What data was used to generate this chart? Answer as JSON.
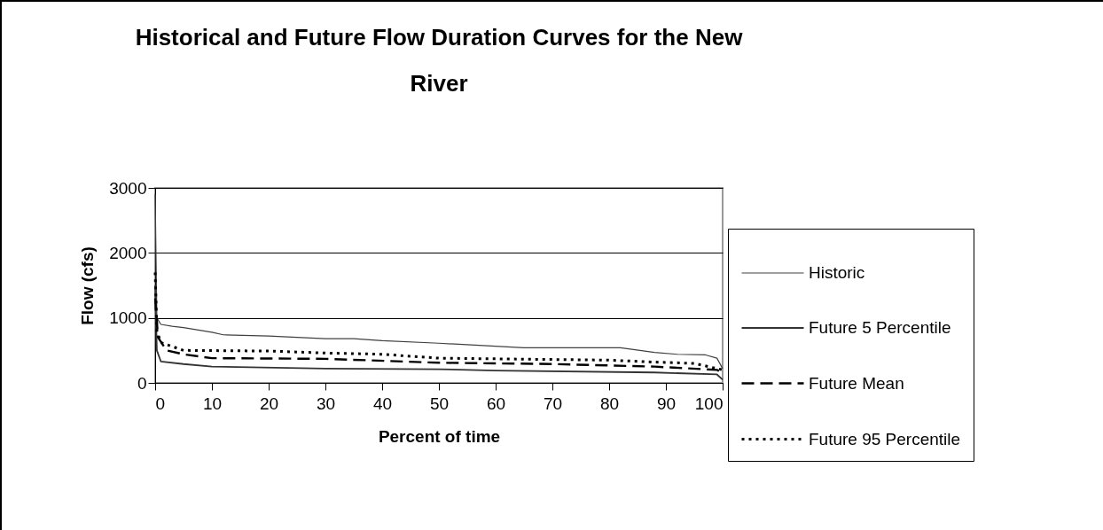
{
  "chart_data": {
    "type": "line",
    "title": "Historical and Future Flow Duration Curves for the New River",
    "xlabel": "Percent of time",
    "ylabel": "Flow (cfs)",
    "xlim": [
      0,
      100
    ],
    "xticks": [
      0,
      10,
      20,
      30,
      40,
      50,
      60,
      70,
      80,
      90,
      100
    ],
    "ylim": [
      0,
      3000
    ],
    "yticks": [
      0,
      1000,
      2000,
      3000
    ],
    "grid": "y",
    "legend": "right",
    "marker": "none",
    "series": [
      {
        "name": "Historic",
        "color": "#404040",
        "line_style": "solid",
        "x": [
          0,
          0.3,
          1,
          3,
          5,
          10,
          12,
          20,
          30,
          35,
          40,
          50,
          65,
          82,
          88,
          92,
          97,
          99,
          100
        ],
        "values": [
          2900,
          1000,
          900,
          870,
          850,
          780,
          740,
          720,
          680,
          680,
          650,
          610,
          540,
          540,
          470,
          440,
          430,
          380,
          220
        ]
      },
      {
        "name": "Future 5 Percentile",
        "color": "#333333",
        "line_style": "solid",
        "x": [
          0,
          0.3,
          1,
          5,
          10,
          30,
          50,
          60,
          88,
          99,
          100
        ],
        "values": [
          1500,
          500,
          330,
          290,
          250,
          220,
          210,
          190,
          160,
          130,
          50
        ]
      },
      {
        "name": "Future Mean",
        "color": "#000000",
        "line_style": "dashed",
        "x": [
          0,
          0.5,
          2,
          5,
          10,
          30,
          50,
          70,
          88,
          99,
          100
        ],
        "values": [
          1300,
          700,
          500,
          440,
          380,
          370,
          310,
          290,
          250,
          200,
          150
        ]
      },
      {
        "name": "Future 95 Percentile",
        "color": "#000000",
        "line_style": "dotted",
        "x": [
          0,
          0.3,
          1,
          3,
          5,
          20,
          30,
          40,
          50,
          80,
          88,
          95,
          100
        ],
        "values": [
          1700,
          800,
          620,
          560,
          500,
          490,
          460,
          440,
          380,
          350,
          320,
          300,
          200
        ]
      }
    ]
  }
}
